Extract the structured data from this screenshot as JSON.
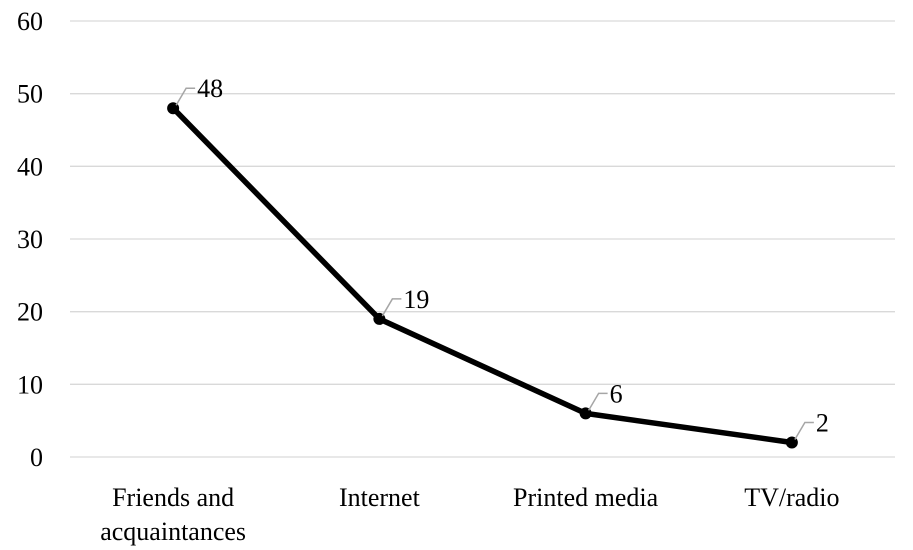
{
  "chart_data": {
    "type": "line",
    "categories": [
      [
        "Friends and",
        "acquaintances"
      ],
      [
        "Internet"
      ],
      [
        "Printed media"
      ],
      [
        "TV/radio"
      ]
    ],
    "series": [
      {
        "values": [
          48,
          19,
          6,
          2
        ]
      }
    ],
    "ylim": [
      0,
      60
    ],
    "yticks": [
      0,
      10,
      20,
      30,
      40,
      50,
      60
    ],
    "grid": true,
    "data_labels": true,
    "legend": "none",
    "line_color": "#000000",
    "grid_color": "#d9d9d9",
    "leader_color": "#a6a6a6"
  }
}
